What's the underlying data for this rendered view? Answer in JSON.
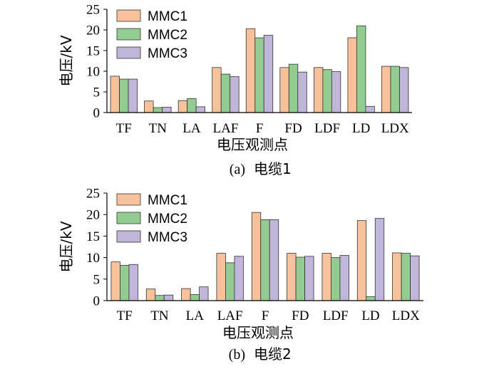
{
  "colors": {
    "MMC1": "#f7c19c",
    "MMC2": "#93cc90",
    "MMC3": "#c1b6d9"
  },
  "chart_data": [
    {
      "type": "bar",
      "caption_label": "(a)",
      "caption_text": "电缆1",
      "xlabel": "电压观测点",
      "ylabel": "电压/kV",
      "ylim": [
        0,
        25
      ],
      "yticks": [
        "0",
        "5",
        "10",
        "15",
        "20",
        "25"
      ],
      "categories": [
        "TF",
        "TN",
        "LA",
        "LAF",
        "F",
        "FD",
        "LDF",
        "LD",
        "LDX"
      ],
      "legend_position": "top-left",
      "series": [
        {
          "name": "MMC1",
          "values": [
            8.8,
            2.8,
            2.9,
            10.9,
            20.3,
            10.9,
            10.9,
            18.1,
            11.2
          ]
        },
        {
          "name": "MMC2",
          "values": [
            8.1,
            1.2,
            3.4,
            9.3,
            18.1,
            11.7,
            10.4,
            21.0,
            11.2
          ]
        },
        {
          "name": "MMC3",
          "values": [
            8.1,
            1.3,
            1.4,
            8.7,
            18.7,
            9.8,
            9.9,
            1.5,
            10.9
          ]
        }
      ]
    },
    {
      "type": "bar",
      "caption_label": "(b)",
      "caption_text": "电缆2",
      "xlabel": "电压观测点",
      "ylabel": "电压/kV",
      "ylim": [
        0,
        25
      ],
      "yticks": [
        "0",
        "5",
        "10",
        "15",
        "20",
        "25"
      ],
      "categories": [
        "TF",
        "TN",
        "LA",
        "LAF",
        "F",
        "FD",
        "LDF",
        "LD",
        "LDX"
      ],
      "legend_position": "top-left",
      "series": [
        {
          "name": "MMC1",
          "values": [
            9.0,
            2.7,
            2.8,
            11.0,
            20.5,
            11.0,
            11.0,
            18.6,
            11.1
          ]
        },
        {
          "name": "MMC2",
          "values": [
            8.2,
            1.2,
            1.4,
            8.8,
            18.8,
            10.1,
            10.0,
            0.9,
            11.0
          ]
        },
        {
          "name": "MMC3",
          "values": [
            8.4,
            1.3,
            3.2,
            10.3,
            18.8,
            10.3,
            10.5,
            19.1,
            10.4
          ]
        }
      ]
    }
  ]
}
